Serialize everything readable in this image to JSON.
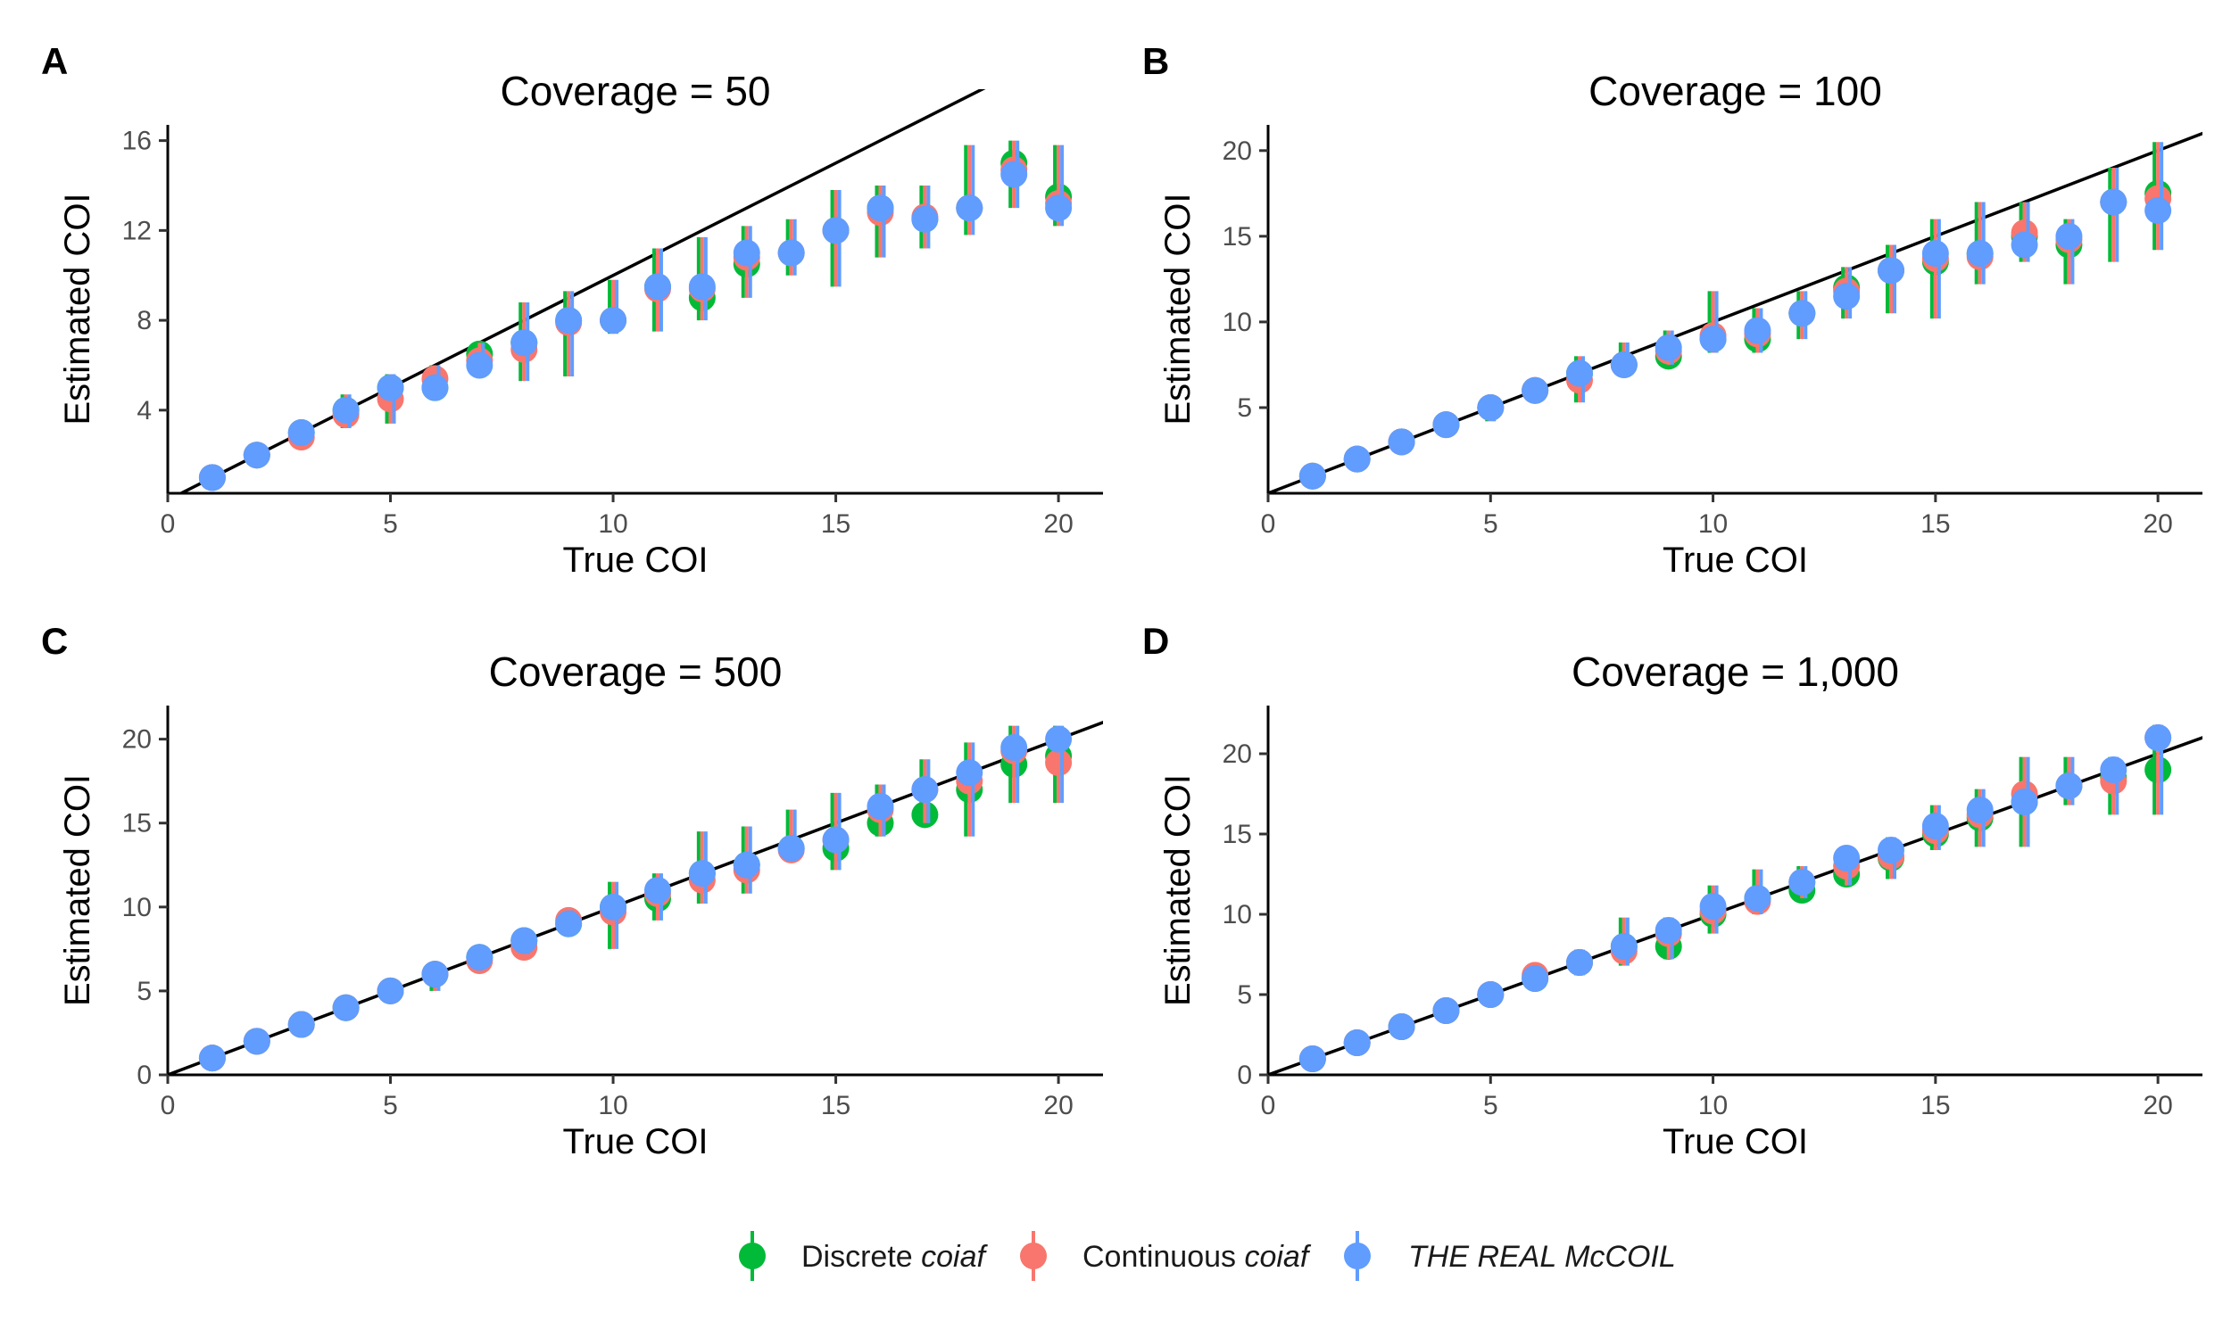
{
  "figure": {
    "colors": {
      "discrete": "#00BA38",
      "continuous": "#F8766D",
      "mccoil": "#619CFF",
      "axis": "#000000",
      "tick_text": "#4D4D4D"
    },
    "legend": {
      "discrete": {
        "prefix": "Discrete ",
        "italic": "coiaf"
      },
      "continuous": {
        "prefix": "Continuous ",
        "italic": "coiaf"
      },
      "mccoil": {
        "prefix": "",
        "italic": "THE REAL McCOIL"
      }
    }
  },
  "chart_data": [
    {
      "panel": "A",
      "type": "scatter",
      "title": "Coverage = 50",
      "xlabel": "True COI",
      "ylabel": "Estimated COI",
      "xlim": [
        0,
        21
      ],
      "ylim": [
        0.3,
        16.7
      ],
      "xticks": [
        0,
        5,
        10,
        15,
        20
      ],
      "yticks": [
        4,
        8,
        12,
        16
      ],
      "identity_line": true,
      "x": [
        1,
        2,
        3,
        4,
        5,
        6,
        7,
        8,
        9,
        10,
        11,
        12,
        13,
        14,
        15,
        16,
        17,
        18,
        19,
        20
      ],
      "series": [
        {
          "name": "Discrete coiaf",
          "color": "#00BA38",
          "values": [
            1,
            2,
            3,
            4,
            5,
            5,
            6.5,
            7,
            8,
            8,
            9.5,
            9,
            10.5,
            11,
            12,
            13,
            12.5,
            13,
            15,
            13.5
          ],
          "err_low": [
            0.8,
            1.8,
            2.6,
            3.2,
            3.4,
            4.5,
            5.5,
            5.3,
            5.5,
            7.4,
            7.5,
            8,
            9,
            10,
            9.5,
            10.8,
            11.2,
            11.8,
            13,
            12.2
          ],
          "err_high": [
            1.2,
            2.2,
            3.3,
            4.7,
            5.6,
            6,
            7,
            8.8,
            9.3,
            9.8,
            11.2,
            11.7,
            12.2,
            12.5,
            13.8,
            14,
            14,
            15.8,
            16,
            15.8
          ]
        },
        {
          "name": "Continuous coiaf",
          "color": "#F8766D",
          "values": [
            1,
            2,
            2.8,
            3.8,
            4.5,
            5.4,
            6.2,
            6.7,
            7.9,
            8,
            9.4,
            9.4,
            10.8,
            11,
            12,
            12.8,
            12.6,
            13,
            14.7,
            13.2
          ],
          "err_low": [
            0.8,
            1.8,
            2.6,
            3.2,
            3.4,
            4.5,
            5.5,
            5.3,
            5.5,
            7.4,
            7.5,
            8,
            9,
            10,
            9.5,
            10.8,
            11.2,
            11.8,
            13,
            12.2
          ],
          "err_high": [
            1.2,
            2.2,
            3.3,
            4.7,
            5.6,
            6,
            7,
            8.8,
            9.3,
            9.8,
            11.2,
            11.7,
            12.2,
            12.5,
            13.8,
            14,
            14,
            15.8,
            16,
            15.8
          ]
        },
        {
          "name": "THE REAL McCOIL",
          "color": "#619CFF",
          "values": [
            1,
            2,
            3,
            4,
            5,
            5,
            6,
            7,
            8,
            8,
            9.5,
            9.5,
            11,
            11,
            12,
            13,
            12.5,
            13,
            14.5,
            13
          ],
          "err_low": [
            0.8,
            1.8,
            2.6,
            3.2,
            3.4,
            4.5,
            5.5,
            5.3,
            5.5,
            7.4,
            7.5,
            8,
            9,
            10,
            9.5,
            10.8,
            11.2,
            11.8,
            13,
            12.2
          ],
          "err_high": [
            1.2,
            2.2,
            3.3,
            4.7,
            5.6,
            6,
            7,
            8.8,
            9.3,
            9.8,
            11.2,
            11.7,
            12.2,
            12.5,
            13.8,
            14,
            14,
            15.8,
            16,
            15.8
          ]
        }
      ]
    },
    {
      "panel": "B",
      "type": "scatter",
      "title": "Coverage = 100",
      "xlabel": "True COI",
      "ylabel": "Estimated COI",
      "xlim": [
        0,
        21
      ],
      "ylim": [
        0,
        21.5
      ],
      "xticks": [
        0,
        5,
        10,
        15,
        20
      ],
      "yticks": [
        5,
        10,
        15,
        20
      ],
      "identity_line": true,
      "x": [
        1,
        2,
        3,
        4,
        5,
        6,
        7,
        8,
        9,
        10,
        11,
        12,
        13,
        14,
        15,
        16,
        17,
        18,
        19,
        20
      ],
      "series": [
        {
          "name": "Discrete coiaf",
          "color": "#00BA38",
          "values": [
            1,
            2,
            3,
            4,
            5,
            6,
            7,
            7.5,
            8,
            9,
            9,
            10.5,
            12,
            13,
            13.5,
            14,
            15,
            14.5,
            17,
            17.5
          ],
          "err_low": [
            0.8,
            1.8,
            2.6,
            3.6,
            4.2,
            5.5,
            5.3,
            6.8,
            7.5,
            8.2,
            8.2,
            9,
            10.2,
            10.5,
            10.2,
            12.2,
            13.5,
            12.2,
            13.5,
            14.2
          ],
          "err_high": [
            1.2,
            2.2,
            3.2,
            4.5,
            5.5,
            6.5,
            8,
            8.8,
            9.5,
            11.8,
            10.8,
            11.8,
            13.2,
            14.5,
            16,
            17,
            17,
            16,
            19,
            20.5
          ]
        },
        {
          "name": "Continuous coiaf",
          "color": "#F8766D",
          "values": [
            1,
            2,
            3,
            4,
            5,
            6,
            6.6,
            7.5,
            8.3,
            9.2,
            9.3,
            10.5,
            11.8,
            13,
            13.7,
            13.8,
            15.2,
            14.8,
            17,
            17.2
          ],
          "err_low": [
            0.8,
            1.8,
            2.6,
            3.6,
            4.2,
            5.5,
            5.3,
            6.8,
            7.5,
            8.2,
            8.2,
            9,
            10.2,
            10.5,
            10.2,
            12.2,
            13.5,
            12.2,
            13.5,
            14.2
          ],
          "err_high": [
            1.2,
            2.2,
            3.2,
            4.5,
            5.5,
            6.5,
            8,
            8.8,
            9.5,
            11.8,
            10.8,
            11.8,
            13.2,
            14.5,
            16,
            17,
            17,
            16,
            19,
            20.5
          ]
        },
        {
          "name": "THE REAL McCOIL",
          "color": "#619CFF",
          "values": [
            1,
            2,
            3,
            4,
            5,
            6,
            7,
            7.5,
            8.5,
            9,
            9.5,
            10.5,
            11.5,
            13,
            14,
            14,
            14.5,
            15,
            17,
            16.5
          ],
          "err_low": [
            0.8,
            1.8,
            2.6,
            3.6,
            4.2,
            5.5,
            5.3,
            6.8,
            7.5,
            8.2,
            8.2,
            9,
            10.2,
            10.5,
            10.2,
            12.2,
            13.5,
            12.2,
            13.5,
            14.2
          ],
          "err_high": [
            1.2,
            2.2,
            3.2,
            4.5,
            5.5,
            6.5,
            8,
            8.8,
            9.5,
            11.8,
            10.8,
            11.8,
            13.2,
            14.5,
            16,
            17,
            17,
            16,
            19,
            20.5
          ]
        }
      ]
    },
    {
      "panel": "C",
      "type": "scatter",
      "title": "Coverage = 500",
      "xlabel": "True COI",
      "ylabel": "Estimated COI",
      "xlim": [
        0,
        21
      ],
      "ylim": [
        0,
        22
      ],
      "xticks": [
        0,
        5,
        10,
        15,
        20
      ],
      "yticks": [
        0,
        5,
        10,
        15,
        20
      ],
      "identity_line": true,
      "x": [
        1,
        2,
        3,
        4,
        5,
        6,
        7,
        8,
        9,
        10,
        11,
        12,
        13,
        14,
        15,
        16,
        17,
        18,
        19,
        20
      ],
      "series": [
        {
          "name": "Discrete coiaf",
          "color": "#00BA38",
          "values": [
            1,
            2,
            3,
            4,
            5,
            6,
            7,
            8,
            9,
            10,
            10.5,
            12,
            12.5,
            13.5,
            13.5,
            15,
            15.5,
            17,
            18.5,
            19
          ],
          "err_low": [
            0.8,
            1.8,
            2.8,
            3.8,
            4.8,
            5,
            6.5,
            7.2,
            8.5,
            7.5,
            9.2,
            10.2,
            10.8,
            12.8,
            12.2,
            14.2,
            15,
            14.2,
            16.2,
            16.2
          ],
          "err_high": [
            1.2,
            2.2,
            3.2,
            4.2,
            5.2,
            6.5,
            7.5,
            8.6,
            9.8,
            11.5,
            12,
            14.5,
            14.8,
            15.8,
            16.8,
            17.3,
            18.8,
            19.8,
            20.8,
            20.8
          ]
        },
        {
          "name": "Continuous coiaf",
          "color": "#F8766D",
          "values": [
            1,
            2,
            3,
            4,
            5,
            6,
            6.8,
            7.6,
            9.2,
            9.7,
            10.8,
            11.6,
            12.2,
            13.4,
            14,
            15.8,
            17,
            17.5,
            19.3,
            18.6
          ],
          "err_low": [
            0.8,
            1.8,
            2.8,
            3.8,
            4.8,
            5,
            6.5,
            7.2,
            8.5,
            7.5,
            9.2,
            10.2,
            10.8,
            12.8,
            12.2,
            14.2,
            15,
            14.2,
            16.2,
            16.2
          ],
          "err_high": [
            1.2,
            2.2,
            3.2,
            4.2,
            5.2,
            6.5,
            7.5,
            8.6,
            9.8,
            11.5,
            12,
            14.5,
            14.8,
            15.8,
            16.8,
            17.3,
            18.8,
            19.8,
            20.8,
            20.8
          ]
        },
        {
          "name": "THE REAL McCOIL",
          "color": "#619CFF",
          "values": [
            1,
            2,
            3,
            4,
            5,
            6,
            7,
            8,
            9,
            10,
            11,
            12,
            12.5,
            13.5,
            14,
            16,
            17,
            18,
            19.5,
            20
          ],
          "err_low": [
            0.8,
            1.8,
            2.8,
            3.8,
            4.8,
            5,
            6.5,
            7.2,
            8.5,
            7.5,
            9.2,
            10.2,
            10.8,
            12.8,
            12.2,
            14.2,
            15,
            14.2,
            16.2,
            16.2
          ],
          "err_high": [
            1.2,
            2.2,
            3.2,
            4.2,
            5.2,
            6.5,
            7.5,
            8.6,
            9.8,
            11.5,
            12,
            14.5,
            14.8,
            15.8,
            16.8,
            17.3,
            18.8,
            19.8,
            20.8,
            20.8
          ]
        }
      ]
    },
    {
      "panel": "D",
      "type": "scatter",
      "title": "Coverage = 1,000",
      "xlabel": "True COI",
      "ylabel": "Estimated COI",
      "xlim": [
        0,
        21
      ],
      "ylim": [
        0,
        23
      ],
      "xticks": [
        0,
        5,
        10,
        15,
        20
      ],
      "yticks": [
        0,
        5,
        10,
        15,
        20
      ],
      "identity_line": true,
      "x": [
        1,
        2,
        3,
        4,
        5,
        6,
        7,
        8,
        9,
        10,
        11,
        12,
        13,
        14,
        15,
        16,
        17,
        18,
        19,
        20
      ],
      "series": [
        {
          "name": "Discrete coiaf",
          "color": "#00BA38",
          "values": [
            1,
            2,
            3,
            4,
            5,
            6,
            7,
            8,
            8,
            10,
            11,
            11.5,
            12.5,
            13.5,
            15,
            16,
            17,
            18,
            18.5,
            19
          ],
          "err_low": [
            0.8,
            1.8,
            2.8,
            3.8,
            4.8,
            5.6,
            6.2,
            6.8,
            7.2,
            8.8,
            10,
            11,
            11.8,
            12.2,
            14,
            14.2,
            14.2,
            16.8,
            16.2,
            16.2
          ],
          "err_high": [
            1.2,
            2.2,
            3.2,
            4.2,
            5.2,
            6.5,
            7.8,
            9.8,
            9.8,
            11.8,
            12.8,
            13,
            13.2,
            14.8,
            16.8,
            17.8,
            19.8,
            19.8,
            19.8,
            21.8
          ]
        },
        {
          "name": "Continuous coiaf",
          "color": "#F8766D",
          "values": [
            1,
            2,
            3,
            4,
            5,
            6.2,
            7,
            7.7,
            8.8,
            10.2,
            10.8,
            12,
            13,
            13.6,
            15.2,
            16.2,
            17.5,
            18,
            18.3,
            21
          ],
          "err_low": [
            0.8,
            1.8,
            2.8,
            3.8,
            4.8,
            5.6,
            6.2,
            6.8,
            7.2,
            8.8,
            10,
            11,
            11.8,
            12.2,
            14,
            14.2,
            14.2,
            16.8,
            16.2,
            16.2
          ],
          "err_high": [
            1.2,
            2.2,
            3.2,
            4.2,
            5.2,
            6.5,
            7.8,
            9.8,
            9.8,
            11.8,
            12.8,
            13,
            13.2,
            14.8,
            16.8,
            17.8,
            19.8,
            19.8,
            19.8,
            21.8
          ]
        },
        {
          "name": "THE REAL McCOIL",
          "color": "#619CFF",
          "values": [
            1,
            2,
            3,
            4,
            5,
            6,
            7,
            8,
            9,
            10.5,
            11,
            12,
            13.5,
            14,
            15.5,
            16.5,
            17,
            18,
            19,
            21
          ],
          "err_low": [
            0.8,
            1.8,
            2.8,
            3.8,
            4.8,
            5.6,
            6.2,
            6.8,
            7.2,
            8.8,
            10,
            11,
            11.8,
            12.2,
            14,
            14.2,
            14.2,
            16.8,
            16.2,
            16.2
          ],
          "err_high": [
            1.2,
            2.2,
            3.2,
            4.2,
            5.2,
            6.5,
            7.8,
            9.8,
            9.8,
            11.8,
            12.8,
            13,
            13.2,
            14.8,
            16.8,
            17.8,
            19.8,
            19.8,
            19.8,
            21.8
          ]
        }
      ]
    }
  ]
}
